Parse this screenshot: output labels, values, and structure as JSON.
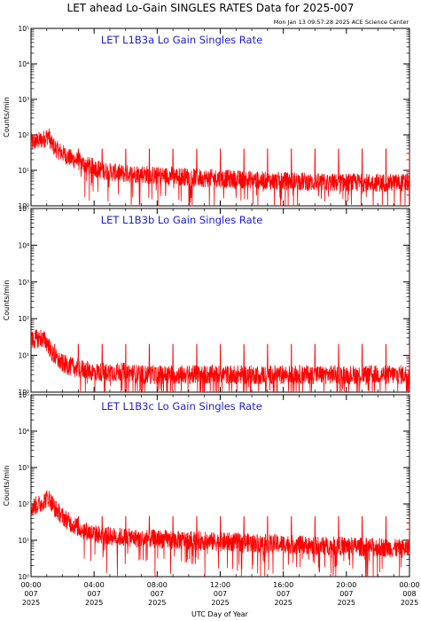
{
  "title": "LET ahead Lo-Gain SINGLES RATES Data for 2025-007",
  "timestamp": "Mon Jan 13 09:57:28 2025 ACE Science Center",
  "xlabel": "UTC Day of Year",
  "ylabel": "Counts/min",
  "x_ticks": [
    {
      "time": "00:00",
      "doy": "007",
      "year": "2025"
    },
    {
      "time": "04:00",
      "doy": "007",
      "year": "2025"
    },
    {
      "time": "08:00",
      "doy": "007",
      "year": "2025"
    },
    {
      "time": "12:00",
      "doy": "007",
      "year": "2025"
    },
    {
      "time": "16:00",
      "doy": "007",
      "year": "2025"
    },
    {
      "time": "20:00",
      "doy": "007",
      "year": "2025"
    },
    {
      "time": "00:00",
      "doy": "008",
      "year": "2025"
    }
  ],
  "y_ticks": [
    "10⁰",
    "10¹",
    "10²",
    "10³",
    "10⁴",
    "10⁵"
  ],
  "colors": {
    "series": "#ff0000",
    "panel_title": "#1d1dd6",
    "axes": "#000000"
  },
  "chart_data": [
    {
      "type": "line",
      "title": "LET L1B3a Lo Gain Singles Rate",
      "xlabel": "UTC Day of Year",
      "ylabel": "Counts/min",
      "x_range_hours": [
        0,
        24
      ],
      "ylim": [
        1,
        100000
      ],
      "yscale": "log",
      "series": [
        {
          "x_hours": [
            0,
            0.3,
            0.6,
            0.9,
            1.1,
            1.3,
            1.6,
            2.0,
            2.5,
            3.0,
            3.5,
            4.0,
            4.5,
            5.0,
            6.0,
            7.0,
            8.0,
            9.0,
            10.0,
            11.0,
            12.0,
            13.0,
            14.0,
            15.0,
            16.0,
            17.0,
            18.0,
            19.0,
            20.0,
            21.0,
            22.0,
            23.0,
            24.0
          ],
          "y": [
            60,
            65,
            70,
            80,
            100,
            55,
            40,
            30,
            22,
            18,
            14,
            12,
            10,
            9,
            8,
            8,
            7,
            7,
            6.5,
            6,
            6,
            5.5,
            5.5,
            5,
            5,
            5,
            4.5,
            4.5,
            4.5,
            4.5,
            4.5,
            4.5,
            4.5
          ],
          "spikes_every_hours": 1.5,
          "spike_height": 40
        }
      ]
    },
    {
      "type": "line",
      "title": "LET L1B3b Lo Gain Singles Rate",
      "xlabel": "UTC Day of Year",
      "ylabel": "Counts/min",
      "x_range_hours": [
        0,
        24
      ],
      "ylim": [
        1,
        100000
      ],
      "yscale": "log",
      "series": [
        {
          "x_hours": [
            0,
            0.3,
            0.6,
            0.9,
            1.1,
            1.3,
            1.6,
            2.0,
            2.5,
            3.0,
            3.5,
            4.0,
            4.5,
            5.0,
            6.0,
            7.0,
            8.0,
            9.0,
            10.0,
            11.0,
            12.0,
            13.0,
            14.0,
            15.0,
            16.0,
            17.0,
            18.0,
            19.0,
            20.0,
            21.0,
            22.0,
            23.0,
            24.0
          ],
          "y": [
            25,
            28,
            30,
            25,
            20,
            12,
            8,
            6,
            5,
            4.5,
            4,
            3.5,
            3.5,
            3.5,
            3.5,
            3,
            3,
            3,
            3,
            3,
            3,
            3,
            3,
            3,
            3,
            3,
            3,
            3,
            3,
            3,
            3,
            3,
            3
          ],
          "spikes_every_hours": 1.5,
          "spike_height": 20
        }
      ]
    },
    {
      "type": "line",
      "title": "LET L1B3c Lo Gain Singles Rate",
      "xlabel": "UTC Day of Year",
      "ylabel": "Counts/min",
      "x_range_hours": [
        0,
        24
      ],
      "ylim": [
        1,
        100000
      ],
      "yscale": "log",
      "series": [
        {
          "x_hours": [
            0,
            0.3,
            0.6,
            0.9,
            1.1,
            1.3,
            1.6,
            2.0,
            2.5,
            3.0,
            3.5,
            4.0,
            4.5,
            5.0,
            6.0,
            7.0,
            8.0,
            9.0,
            10.0,
            11.0,
            12.0,
            13.0,
            14.0,
            15.0,
            16.0,
            17.0,
            18.0,
            19.0,
            20.0,
            21.0,
            22.0,
            23.0,
            24.0
          ],
          "y": [
            80,
            90,
            100,
            130,
            150,
            110,
            70,
            45,
            30,
            22,
            18,
            15,
            14,
            13,
            12,
            11,
            11,
            10,
            10,
            9.5,
            9,
            9,
            8.5,
            8,
            8,
            7.5,
            7,
            7,
            7,
            6.5,
            6.5,
            6,
            6
          ],
          "spikes_every_hours": 1.5,
          "spike_height": 45
        }
      ]
    }
  ]
}
